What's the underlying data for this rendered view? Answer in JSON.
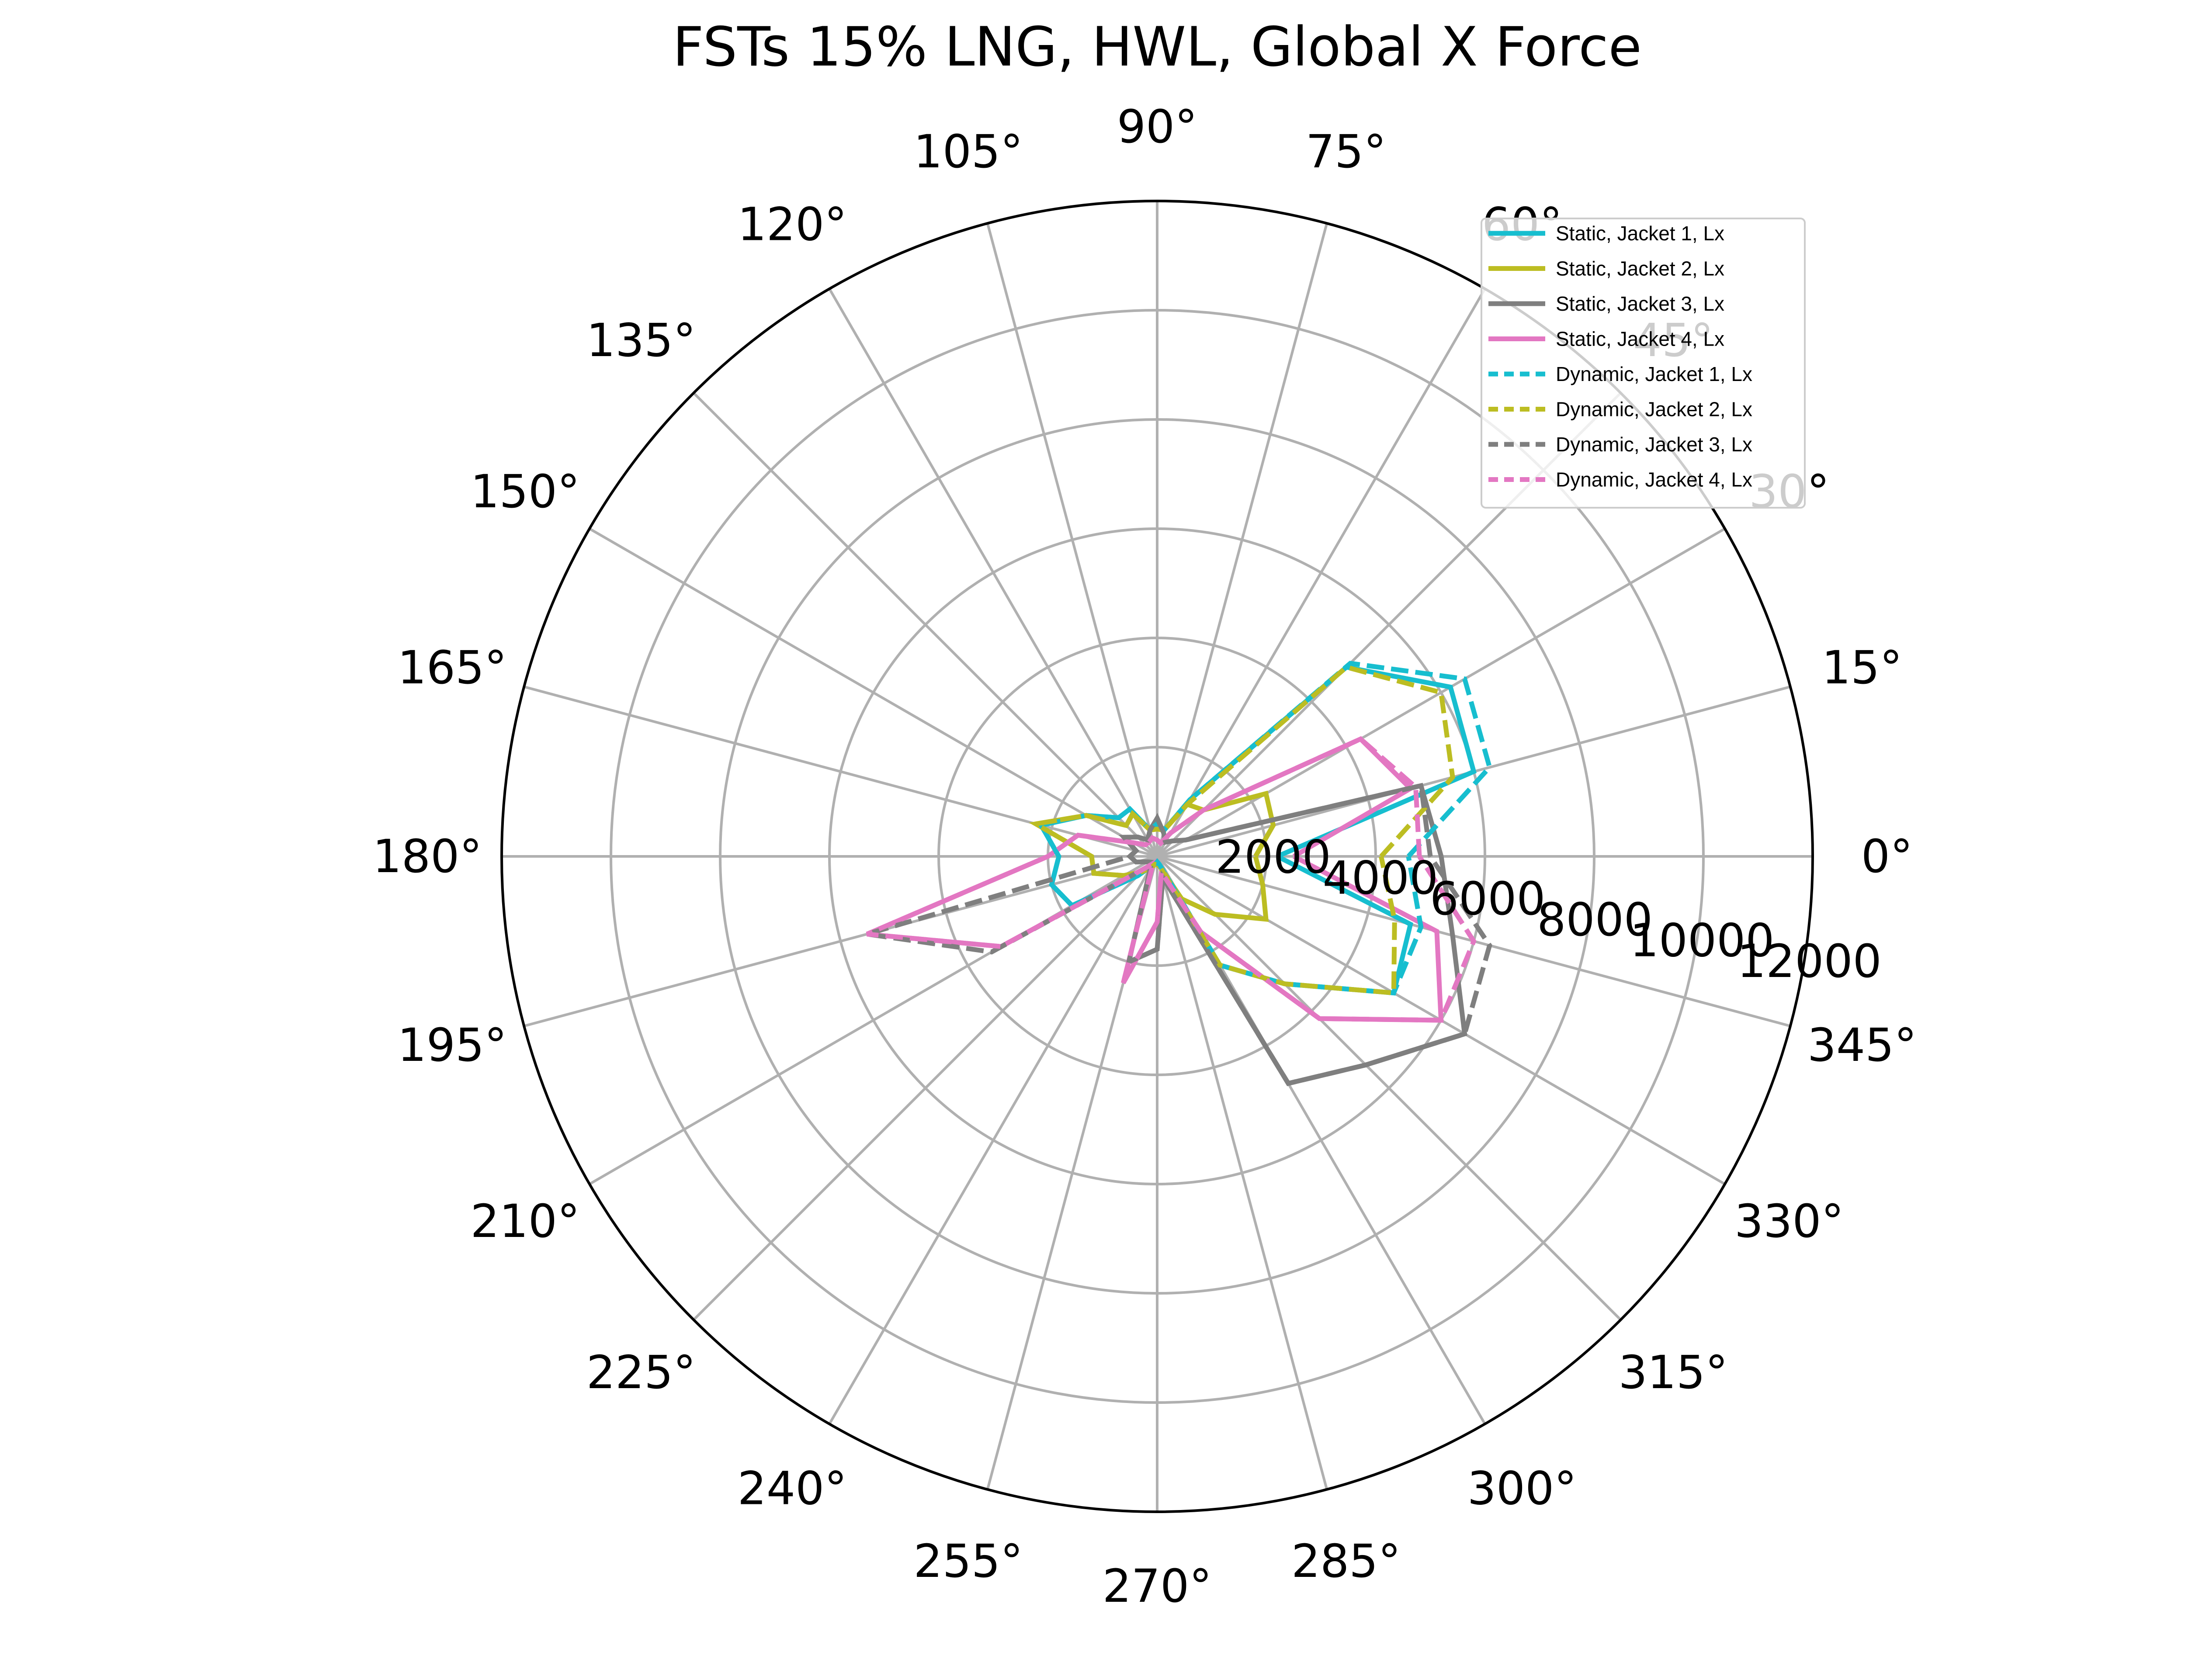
{
  "chart_data": {
    "type": "line",
    "subtype": "polar",
    "title": "FSTs 15% LNG, HWL, Global X Force",
    "theta_unit": "degrees",
    "r_max": 12000,
    "r_ticks": [
      2000,
      4000,
      6000,
      8000,
      10000,
      12000
    ],
    "theta_ticks": [
      0,
      15,
      30,
      45,
      60,
      75,
      90,
      105,
      120,
      135,
      150,
      165,
      180,
      195,
      210,
      225,
      240,
      255,
      270,
      285,
      300,
      315,
      330,
      345
    ],
    "grid": true,
    "legend_position": "upper right",
    "theta": [
      0,
      15,
      30,
      45,
      60,
      75,
      90,
      105,
      120,
      135,
      150,
      165,
      180,
      195,
      210,
      225,
      240,
      255,
      270,
      285,
      300,
      315,
      330,
      345,
      360
    ],
    "series": [
      {
        "name": "Static, Jacket 1, Lx",
        "color": "#17becf",
        "dash": "solid",
        "r": [
          2200,
          6000,
          6200,
          4900,
          1200,
          500,
          600,
          500,
          1000,
          1000,
          1500,
          2200,
          1800,
          2000,
          1800,
          500,
          200,
          150,
          100,
          150,
          2300,
          3300,
          5000,
          4800,
          2200
        ]
      },
      {
        "name": "Static, Jacket 2, Lx",
        "color": "#bcbd22",
        "dash": "solid",
        "r": [
          1800,
          2200,
          2300,
          1200,
          1100,
          500,
          500,
          500,
          900,
          800,
          1500,
          2300,
          1200,
          1200,
          700,
          400,
          250,
          150,
          150,
          200,
          900,
          1500,
          2300,
          2000,
          1800
        ]
      },
      {
        "name": "Static, Jacket 3, Lx",
        "color": "#7f7f7f",
        "dash": "solid",
        "r": [
          5200,
          5000,
          600,
          400,
          300,
          450,
          700,
          500,
          350,
          500,
          700,
          400,
          500,
          400,
          200,
          150,
          250,
          2000,
          1700,
          400,
          4800,
          5400,
          6500,
          5600,
          5200
        ]
      },
      {
        "name": "Static, Jacket 4, Lx",
        "color": "#e377c2",
        "dash": "solid",
        "r": [
          2500,
          4800,
          4300,
          1200,
          500,
          250,
          300,
          350,
          300,
          300,
          500,
          1500,
          2000,
          5500,
          3300,
          300,
          150,
          2400,
          1200,
          300,
          1600,
          4200,
          6000,
          5300,
          2500
        ]
      },
      {
        "name": "Dynamic, Jacket 1, Lx",
        "color": "#17becf",
        "dash": "dashed",
        "r": [
          4600,
          6300,
          6500,
          5000,
          1200,
          500,
          600,
          500,
          1000,
          1000,
          1500,
          2200,
          1800,
          2000,
          1800,
          500,
          200,
          150,
          100,
          150,
          2300,
          3300,
          5000,
          5000,
          4600
        ]
      },
      {
        "name": "Dynamic, Jacket 2, Lx",
        "color": "#bcbd22",
        "dash": "dashed",
        "r": [
          4100,
          5600,
          6000,
          4900,
          1100,
          500,
          500,
          500,
          900,
          800,
          1500,
          2300,
          1200,
          1200,
          700,
          400,
          250,
          150,
          150,
          200,
          2300,
          3300,
          5000,
          4500,
          4100
        ]
      },
      {
        "name": "Dynamic, Jacket 3, Lx",
        "color": "#7f7f7f",
        "dash": "dashed",
        "r": [
          5000,
          5000,
          600,
          400,
          300,
          450,
          700,
          500,
          350,
          500,
          700,
          400,
          500,
          5500,
          3500,
          300,
          250,
          2000,
          1700,
          400,
          4800,
          5400,
          6500,
          6300,
          5000
        ]
      },
      {
        "name": "Dynamic, Jacket 4, Lx",
        "color": "#e377c2",
        "dash": "dashed",
        "r": [
          4800,
          4900,
          4300,
          1200,
          500,
          250,
          300,
          350,
          300,
          300,
          500,
          1500,
          2000,
          5500,
          3300,
          300,
          150,
          2400,
          1200,
          300,
          1600,
          4200,
          6000,
          6000,
          4800
        ]
      }
    ]
  }
}
